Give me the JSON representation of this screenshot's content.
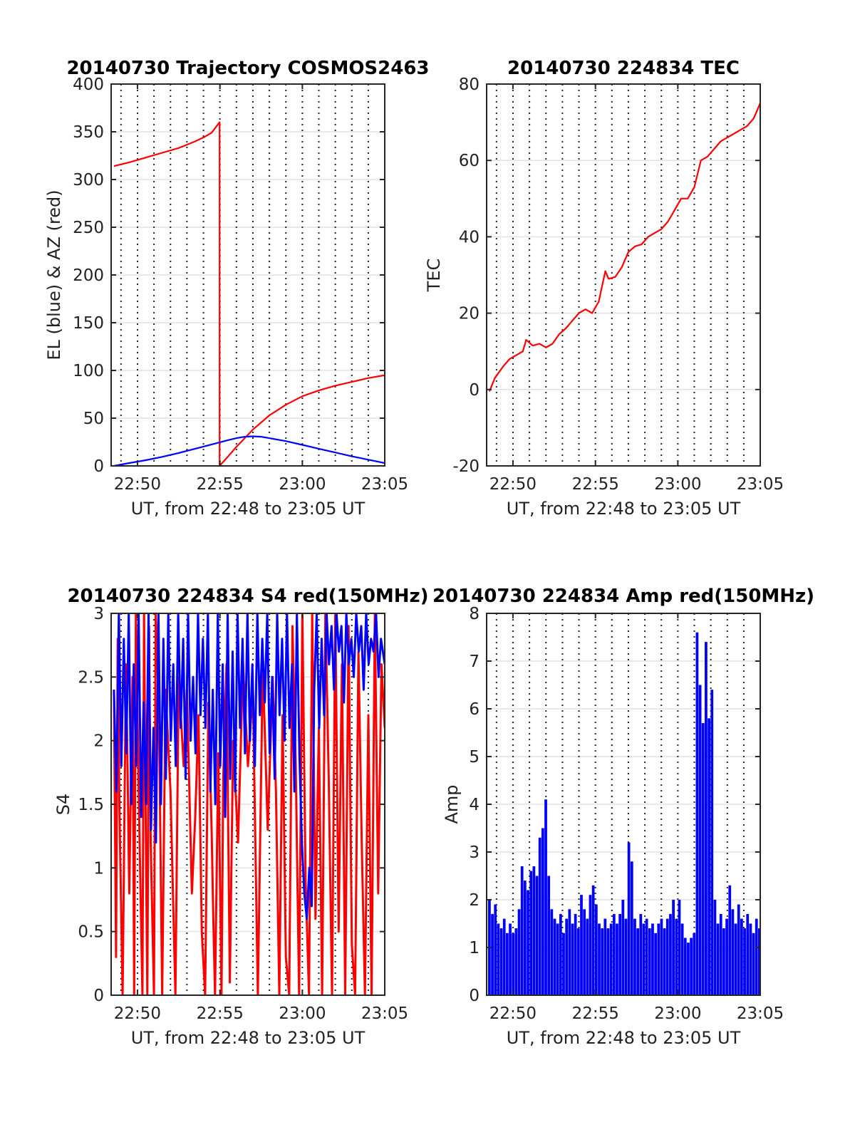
{
  "figure": {
    "background": "#ffffff"
  },
  "chart_data": [
    {
      "id": "trajectory",
      "type": "line",
      "title": "20140730 Trajectory COSMOS2463",
      "xlabel": "UT, from 22:48 to 23:05 UT",
      "ylabel": "EL (blue) & AZ (red)",
      "xlim": [
        22.8067,
        23.0833
      ],
      "ylim": [
        0,
        400
      ],
      "x_ticks": [
        {
          "label": "22:50",
          "value": 22.8333
        },
        {
          "label": "22:55",
          "value": 22.9167
        },
        {
          "label": "23:00",
          "value": 23.0
        },
        {
          "label": "23:05",
          "value": 23.0833
        }
      ],
      "y_ticks": [
        "0",
        "50",
        "100",
        "150",
        "200",
        "250",
        "300",
        "350",
        "400"
      ],
      "grid": true,
      "series": [
        {
          "color": "#ff0000",
          "x": [
            22.8095,
            22.825,
            22.8417,
            22.8583,
            22.875,
            22.8917,
            22.9,
            22.9083,
            22.9163,
            22.9163,
            22.925,
            22.9333,
            22.95,
            22.9667,
            22.9833,
            23.0,
            23.0167,
            23.0333,
            23.05,
            23.0667,
            23.0833
          ],
          "y": [
            314,
            318,
            323,
            328,
            333,
            340,
            344,
            349,
            360,
            0,
            10,
            20,
            38,
            53,
            64,
            73,
            79,
            84,
            88,
            92,
            95
          ]
        },
        {
          "color": "#0000ff",
          "x": [
            22.8095,
            22.825,
            22.8417,
            22.8583,
            22.875,
            22.8917,
            22.9083,
            22.925,
            22.9333,
            22.9417,
            22.95,
            22.9583,
            22.9667,
            22.9833,
            23.0,
            23.0167,
            23.0333,
            23.05,
            23.0667,
            23.0833
          ],
          "y": [
            0,
            3,
            6,
            9.5,
            13.5,
            18,
            22.5,
            27,
            29,
            30.5,
            31,
            30.5,
            29,
            26,
            22,
            18,
            14,
            10,
            6.5,
            3
          ]
        }
      ]
    },
    {
      "id": "tec",
      "type": "line",
      "title": "20140730 224834 TEC",
      "xlabel": "UT, from 22:48 to 23:05 UT",
      "ylabel": "TEC",
      "xlim": [
        22.8067,
        23.0833
      ],
      "ylim": [
        -20,
        80
      ],
      "x_ticks": [
        {
          "label": "22:50",
          "value": 22.8333
        },
        {
          "label": "22:55",
          "value": 22.9167
        },
        {
          "label": "23:00",
          "value": 23.0
        },
        {
          "label": "23:05",
          "value": 23.0833
        }
      ],
      "y_ticks": [
        "-20",
        "0",
        "20",
        "40",
        "60",
        "80"
      ],
      "grid": true,
      "series": [
        {
          "color": "#ff0000",
          "x": [
            22.8095,
            22.815,
            22.8233,
            22.83,
            22.8367,
            22.8433,
            22.8467,
            22.8533,
            22.86,
            22.8667,
            22.8733,
            22.88,
            22.8867,
            22.8933,
            22.9,
            22.9067,
            22.9133,
            22.92,
            22.9233,
            22.9267,
            22.93,
            22.9367,
            22.9433,
            22.95,
            22.9567,
            22.9633,
            22.97,
            22.9767,
            22.9833,
            22.99,
            22.9967,
            23.0033,
            23.01,
            23.0167,
            23.0233,
            23.03,
            23.0367,
            23.0433,
            23.05,
            23.0567,
            23.0633,
            23.07,
            23.0767,
            23.0833
          ],
          "y": [
            -0.5,
            3,
            6,
            8,
            9,
            10,
            13,
            11.5,
            12,
            11,
            12,
            14.5,
            16,
            18,
            20,
            21,
            20,
            23,
            27,
            31,
            29,
            29.5,
            32,
            36,
            37.5,
            38,
            40,
            41,
            42,
            44,
            47,
            50,
            50,
            53,
            60,
            61,
            63,
            65,
            66,
            67,
            68,
            69,
            71,
            75
          ]
        }
      ]
    },
    {
      "id": "s4",
      "type": "line",
      "title": "20140730 224834 S4 red(150MHz)",
      "xlabel": "UT, from 22:48 to 23:05 UT",
      "ylabel": "S4",
      "xlim": [
        22.8067,
        23.0833
      ],
      "ylim": [
        0,
        3
      ],
      "x_ticks": [
        {
          "label": "22:50",
          "value": 22.8333
        },
        {
          "label": "22:55",
          "value": 22.9167
        },
        {
          "label": "23:00",
          "value": 23.0
        },
        {
          "label": "23:05",
          "value": 23.0833
        }
      ],
      "y_ticks": [
        "0",
        "0.5",
        "1",
        "1.5",
        "2",
        "2.5",
        "3"
      ],
      "grid": true,
      "series": [
        {
          "color": "#ff0000",
          "x": [
            22.8095,
            22.8117,
            22.8133,
            22.815,
            22.8183,
            22.8217,
            22.8233,
            22.825,
            22.8283,
            22.83,
            22.8317,
            22.835,
            22.8383,
            22.84,
            22.8417,
            22.8433,
            22.845,
            22.8467,
            22.85,
            22.8517,
            22.855,
            22.8583,
            22.8617,
            22.8667,
            22.8717,
            22.875,
            22.88,
            22.8833,
            22.8883,
            22.8917,
            22.895,
            22.8983,
            22.9017,
            22.905,
            22.9083,
            22.91,
            22.9117,
            22.915,
            22.9183,
            22.92,
            22.9233,
            22.9267,
            22.93,
            22.935,
            22.94,
            22.945,
            22.95,
            22.955,
            22.96,
            22.965,
            22.97,
            22.9733,
            22.9767,
            22.98,
            22.9833,
            22.9867,
            22.99,
            22.9933,
            22.9967,
            23.0,
            23.0033,
            23.0067,
            23.01,
            23.0133,
            23.0167,
            23.02,
            23.0233,
            23.0267,
            23.03,
            23.0333,
            23.0367,
            23.04,
            23.0433,
            23.0467,
            23.05,
            23.0533,
            23.0567,
            23.06,
            23.0633,
            23.0667,
            23.07,
            23.0733,
            23.0767,
            23.08,
            23.0833
          ],
          "y": [
            2.4,
            0.3,
            2.8,
            1.5,
            0,
            2.6,
            1.8,
            0.8,
            2.5,
            0,
            3,
            1.4,
            0,
            3,
            1.3,
            0,
            2.9,
            1.2,
            0,
            3,
            2.2,
            0,
            2.4,
            1.6,
            0,
            2.5,
            1.8,
            2.4,
            0.8,
            1.4,
            2.2,
            0.5,
            0,
            2.3,
            1.3,
            0.6,
            0,
            1.9,
            0,
            1.7,
            2.6,
            0.1,
            2,
            1.2,
            2.6,
            1.8,
            2.4,
            0,
            2.6,
            1.3,
            2.5,
            1.6,
            0,
            2.2,
            0.3,
            0,
            2.9,
            1.8,
            0,
            3,
            0.9,
            0,
            3,
            0.6,
            2.1,
            0,
            3,
            1.7,
            0,
            3,
            0.5,
            2.6,
            0,
            2.9,
            0.4,
            0,
            2.7,
            1.2,
            0,
            2.2,
            0,
            3,
            0.8,
            2.6,
            2.1
          ]
        },
        {
          "color": "#0000ff",
          "x": [
            22.8095,
            22.812,
            22.8145,
            22.817,
            22.8195,
            22.822,
            22.8245,
            22.827,
            22.8295,
            22.832,
            22.8345,
            22.837,
            22.8395,
            22.842,
            22.8445,
            22.847,
            22.8495,
            22.852,
            22.8545,
            22.857,
            22.8595,
            22.862,
            22.8645,
            22.867,
            22.8695,
            22.872,
            22.8745,
            22.877,
            22.8795,
            22.882,
            22.8845,
            22.887,
            22.8895,
            22.892,
            22.8945,
            22.897,
            22.8995,
            22.902,
            22.9045,
            22.907,
            22.9095,
            22.912,
            22.9145,
            22.917,
            22.9195,
            22.922,
            22.9245,
            22.927,
            22.9295,
            22.932,
            22.9345,
            22.937,
            22.9395,
            22.942,
            22.9445,
            22.947,
            22.9495,
            22.952,
            22.9545,
            22.957,
            22.9595,
            22.962,
            22.9645,
            22.967,
            22.9695,
            22.972,
            22.9745,
            22.977,
            22.9795,
            22.982,
            22.9845,
            22.987,
            22.9895,
            22.992,
            22.9945,
            22.997,
            22.9995,
            23.002,
            23.0045,
            23.007,
            23.0095,
            23.012,
            23.0145,
            23.017,
            23.0195,
            23.022,
            23.0245,
            23.027,
            23.0295,
            23.032,
            23.0345,
            23.037,
            23.0395,
            23.042,
            23.0445,
            23.047,
            23.0495,
            23.052,
            23.0545,
            23.057,
            23.0595,
            23.062,
            23.0645,
            23.067,
            23.0695,
            23.072,
            23.0745,
            23.077,
            23.0795,
            23.0833
          ],
          "y": [
            2.4,
            1.6,
            3,
            1.8,
            2.8,
            1.9,
            3,
            1.5,
            2.6,
            1.8,
            3,
            1.4,
            2.3,
            1.5,
            3,
            1.3,
            2.1,
            1.2,
            3,
            1.5,
            2.8,
            1.7,
            3,
            2,
            2.6,
            1.8,
            3,
            2.1,
            2.8,
            1.7,
            3,
            2,
            2.5,
            1.9,
            3,
            2.2,
            2.8,
            2.1,
            3,
            1.6,
            2.4,
            1.5,
            3,
            1.8,
            2.6,
            1.4,
            3,
            1.7,
            2.7,
            1.6,
            3,
            2.1,
            2.8,
            1.9,
            3,
            2,
            2.6,
            1.8,
            3,
            2.2,
            2.8,
            2.3,
            3,
            1.9,
            2.5,
            1.7,
            3,
            2.2,
            2.8,
            2,
            3,
            2.1,
            2.6,
            1.6,
            3,
            1.9,
            1.2,
            0.8,
            0.6,
            1,
            0.7,
            2.4,
            3,
            2.1,
            2.8,
            2.2,
            3,
            2.6,
            2.9,
            2.4,
            3,
            2.7,
            2.9,
            2.3,
            3,
            2.6,
            2.8,
            2.5,
            3,
            2.7,
            2.9,
            2.4,
            3,
            2.6,
            2.8,
            2.7,
            3,
            2.5,
            2.8,
            2.6
          ]
        }
      ]
    },
    {
      "id": "amp",
      "type": "bar",
      "title": "20140730 224834 Amp red(150MHz)",
      "xlabel": "UT, from 22:48 to 23:05 UT",
      "ylabel": "Amp",
      "xlim": [
        22.8067,
        23.0833
      ],
      "ylim": [
        0,
        8
      ],
      "x_ticks": [
        {
          "label": "22:50",
          "value": 22.8333
        },
        {
          "label": "22:55",
          "value": 22.9167
        },
        {
          "label": "23:00",
          "value": 23.0
        },
        {
          "label": "23:05",
          "value": 23.0833
        }
      ],
      "y_ticks": [
        "0",
        "1",
        "2",
        "3",
        "4",
        "5",
        "6",
        "7",
        "8"
      ],
      "grid": true,
      "series": [
        {
          "color": "#0000ff",
          "x": [
            22.8095,
            22.8125,
            22.8155,
            22.8185,
            22.8215,
            22.8245,
            22.8275,
            22.8305,
            22.8335,
            22.8365,
            22.8395,
            22.8425,
            22.8455,
            22.8485,
            22.8515,
            22.8545,
            22.8575,
            22.8605,
            22.8635,
            22.8665,
            22.8695,
            22.8725,
            22.8755,
            22.8785,
            22.8815,
            22.8845,
            22.8875,
            22.8905,
            22.8935,
            22.8965,
            22.8995,
            22.9025,
            22.9055,
            22.9085,
            22.9115,
            22.9145,
            22.9175,
            22.9205,
            22.9235,
            22.9265,
            22.9295,
            22.9325,
            22.9355,
            22.9385,
            22.9415,
            22.9445,
            22.9475,
            22.9505,
            22.9535,
            22.9565,
            22.9595,
            22.9625,
            22.9655,
            22.9685,
            22.9715,
            22.9745,
            22.9775,
            22.9805,
            22.9835,
            22.9865,
            22.9895,
            22.9925,
            22.9955,
            22.9985,
            23.0015,
            23.0045,
            23.0075,
            23.0105,
            23.0135,
            23.0165,
            23.0195,
            23.0225,
            23.0255,
            23.0285,
            23.0315,
            23.0345,
            23.0375,
            23.0405,
            23.0435,
            23.0465,
            23.0495,
            23.0525,
            23.0555,
            23.0585,
            23.0615,
            23.0645,
            23.0675,
            23.0705,
            23.0735,
            23.0765,
            23.0795,
            23.0825
          ],
          "y": [
            2,
            1.7,
            1.9,
            1.5,
            1.4,
            1.6,
            1.3,
            1.5,
            1.3,
            1.4,
            1.8,
            2.7,
            2.4,
            2.2,
            2.6,
            2.7,
            2.5,
            3.3,
            3.5,
            4.1,
            2.5,
            1.8,
            1.6,
            1.5,
            1.7,
            1.3,
            1.6,
            1.8,
            1.5,
            1.7,
            1.4,
            2.1,
            1.8,
            1.6,
            2.1,
            2.3,
            1.9,
            1.5,
            1.4,
            1.6,
            1.4,
            1.5,
            1.7,
            1.5,
            1.7,
            2,
            1.6,
            3.2,
            2.8,
            1.6,
            1.4,
            1.7,
            1.5,
            1.6,
            1.4,
            1.5,
            1.3,
            1.5,
            1.6,
            1.4,
            1.6,
            1.7,
            2,
            1.6,
            2,
            1.5,
            1.2,
            1.1,
            1.2,
            1.3,
            7.6,
            6.5,
            5.7,
            7.4,
            5.8,
            6.4,
            2,
            1.5,
            1.7,
            1.4,
            1.6,
            2.3,
            1.8,
            1.5,
            1.9,
            1.6,
            1.4,
            1.7,
            1.5,
            1.3,
            1.6,
            1.4
          ]
        }
      ]
    }
  ]
}
